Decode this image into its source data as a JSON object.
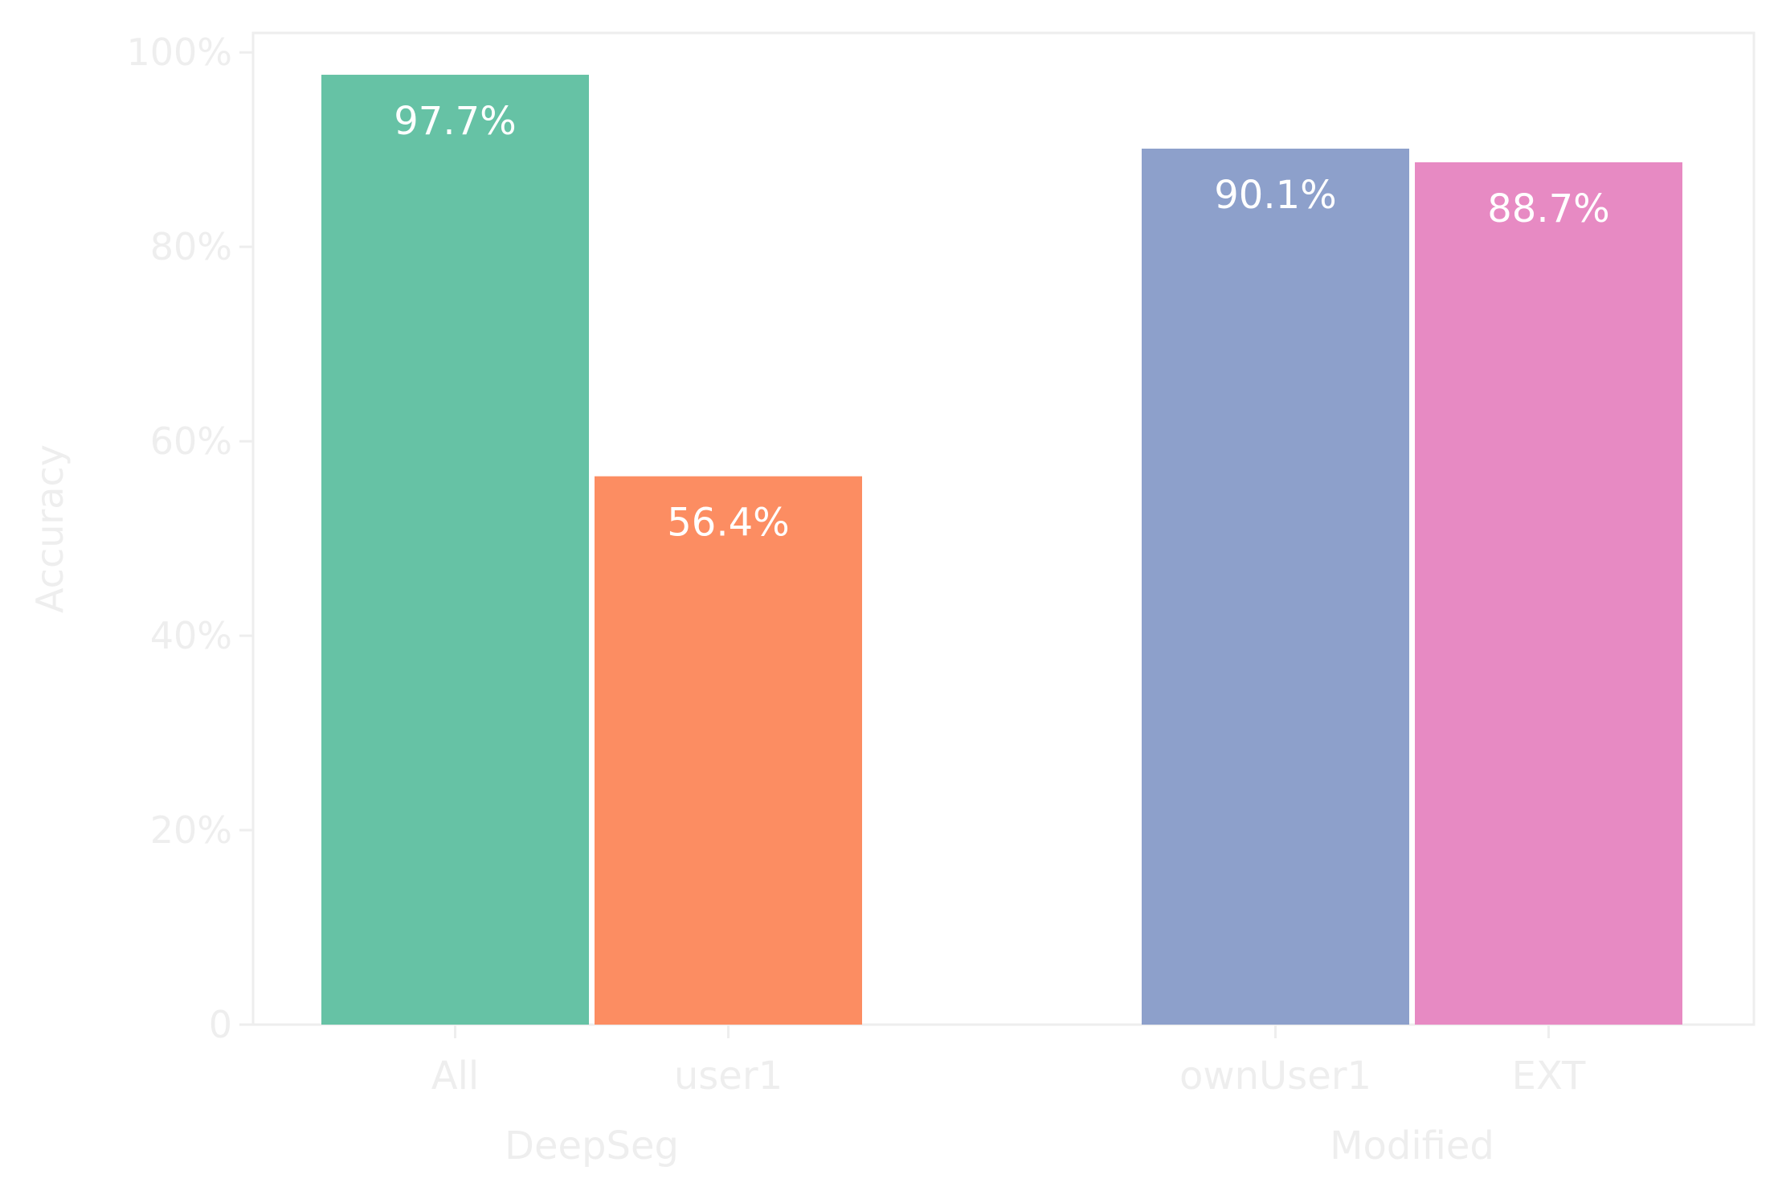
{
  "chart_data": {
    "type": "bar",
    "ylabel": "Accuracy",
    "ylim": [
      0,
      1.02
    ],
    "yticks": [
      {
        "value": 0,
        "label": "0"
      },
      {
        "value": 0.2,
        "label": "20%"
      },
      {
        "value": 0.4,
        "label": "40%"
      },
      {
        "value": 0.6,
        "label": "60%"
      },
      {
        "value": 0.8,
        "label": "80%"
      },
      {
        "value": 1.0,
        "label": "100%"
      }
    ],
    "groups": [
      {
        "name": "DeepSeg",
        "bars": [
          {
            "category": "All",
            "value": 0.977,
            "label": "97.7%",
            "color": "#66c2a5"
          },
          {
            "category": "user1",
            "value": 0.564,
            "label": "56.4%",
            "color": "#fc8d62"
          }
        ]
      },
      {
        "name": "Modified",
        "bars": [
          {
            "category": "ownUser1",
            "value": 0.901,
            "label": "90.1%",
            "color": "#8da0cb"
          },
          {
            "category": "EXT",
            "value": 0.887,
            "label": "88.7%",
            "color": "#e78ac3"
          }
        ]
      }
    ],
    "grid": false,
    "legend": "none",
    "colors": {
      "text": "#eeeeee",
      "axis": "#eeeeee",
      "value_label": "#ffffff"
    }
  }
}
